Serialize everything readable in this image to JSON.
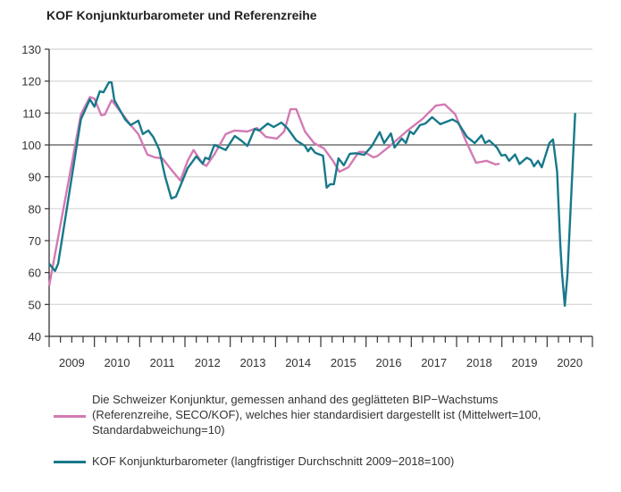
{
  "chart_data": {
    "type": "line",
    "title": "KOF Konjunkturbarometer und Referenzreihe",
    "xlabel": "",
    "ylabel": "",
    "xlim": [
      2009,
      2021
    ],
    "ylim": [
      40,
      130
    ],
    "yticks": [
      40,
      50,
      60,
      70,
      80,
      90,
      100,
      110,
      120,
      130
    ],
    "xtick_labels": [
      "2009",
      "2010",
      "2011",
      "2012",
      "2013",
      "2014",
      "2015",
      "2016",
      "2017",
      "2018",
      "2019",
      "2020"
    ],
    "reference_line": 100,
    "grid": "horizontal",
    "legend_position": "bottom",
    "series": [
      {
        "name": "Die Schweizer Konjunktur, gemessen anhand des geglätteten BIP−Wachstums (Referenzreihe, SECO/KOF), welches hier standardisiert dargestellt ist (Mittelwert=100, Standardabweichung=10)",
        "legend_lines": [
          "Die Schweizer Konjunktur, gemessen anhand des geglätteten BIP−Wachstums",
          "(Referenzreihe, SECO/KOF), welches hier standardisiert dargestellt ist (Mittelwert=100,",
          "Standardabweichung=10)"
        ],
        "color": "#d27ab3",
        "x": [
          2009.0,
          2009.7,
          2009.9,
          2010.0,
          2010.15,
          2010.23,
          2010.38,
          2010.61,
          2010.8,
          2010.97,
          2011.17,
          2011.33,
          2011.5,
          2011.7,
          2011.9,
          2012.06,
          2012.19,
          2012.39,
          2012.47,
          2012.65,
          2012.9,
          2013.1,
          2013.38,
          2013.59,
          2013.79,
          2014.03,
          2014.19,
          2014.33,
          2014.46,
          2014.65,
          2014.85,
          2015.07,
          2015.27,
          2015.41,
          2015.61,
          2015.84,
          2015.96,
          2016.16,
          2016.25,
          2016.53,
          2016.89,
          2017.25,
          2017.54,
          2017.74,
          2017.97,
          2018.2,
          2018.43,
          2018.66,
          2018.86,
          2018.95
        ],
        "y": [
          55.8,
          109.5,
          115,
          114.5,
          109.3,
          109.5,
          114,
          109.8,
          106.2,
          103.4,
          97,
          96.1,
          95.8,
          92.2,
          88.8,
          95,
          98.4,
          94.1,
          93.4,
          97,
          103.4,
          104.5,
          104.2,
          105.3,
          102.5,
          102,
          104.2,
          111.2,
          111.2,
          104.2,
          100.6,
          98.9,
          95,
          91.6,
          93,
          97.8,
          97.8,
          96.1,
          96.5,
          99.7,
          104.2,
          108.2,
          112.3,
          112.7,
          109.6,
          101.4,
          94.4,
          95,
          93.9,
          94.1
        ]
      },
      {
        "name": "KOF Konjunkturbarometer (langfristiger Durchschnitt 2009−2018=100)",
        "color": "#17798a",
        "x": [
          2009.0,
          2009.13,
          2009.2,
          2009.7,
          2009.9,
          2010.0,
          2010.12,
          2010.2,
          2010.32,
          2010.38,
          2010.44,
          2010.68,
          2010.8,
          2010.97,
          2011.07,
          2011.19,
          2011.3,
          2011.43,
          2011.56,
          2011.7,
          2011.8,
          2012.06,
          2012.25,
          2012.39,
          2012.45,
          2012.53,
          2012.65,
          2012.78,
          2012.9,
          2013.1,
          2013.24,
          2013.38,
          2013.54,
          2013.64,
          2013.83,
          2013.96,
          2014.13,
          2014.26,
          2014.46,
          2014.65,
          2014.72,
          2014.78,
          2014.88,
          2015.05,
          2015.13,
          2015.21,
          2015.29,
          2015.39,
          2015.51,
          2015.64,
          2015.77,
          2015.96,
          2016.13,
          2016.3,
          2016.4,
          2016.55,
          2016.63,
          2016.79,
          2016.88,
          2016.97,
          2017.05,
          2017.19,
          2017.31,
          2017.46,
          2017.64,
          2017.91,
          2018.03,
          2018.23,
          2018.4,
          2018.55,
          2018.63,
          2018.72,
          2018.89,
          2018.99,
          2019.08,
          2019.16,
          2019.29,
          2019.39,
          2019.55,
          2019.64,
          2019.71,
          2019.8,
          2019.88,
          2020.05,
          2020.13,
          2020.22,
          2020.29,
          2020.33,
          2020.39,
          2020.45,
          2020.62
        ],
        "y": [
          62.8,
          60.5,
          62.8,
          108,
          114.3,
          112,
          116.8,
          116.5,
          119.6,
          119.6,
          114,
          108,
          106.2,
          107.6,
          103.4,
          104.5,
          102.5,
          98.6,
          90.2,
          83.2,
          83.8,
          92.7,
          96.4,
          94.1,
          96,
          95.5,
          100,
          99.2,
          98.4,
          102.8,
          101.4,
          99.7,
          105,
          104.5,
          106.7,
          105.6,
          107,
          105.3,
          101.4,
          99.7,
          98,
          99.2,
          97.5,
          96.6,
          86.6,
          87.7,
          87.7,
          95.8,
          93.6,
          97.2,
          97.4,
          96.9,
          99.7,
          104,
          100.6,
          103.6,
          99.2,
          102,
          100.6,
          104.2,
          103.4,
          106.2,
          106.7,
          108.7,
          106.5,
          108,
          107,
          102.5,
          100.6,
          103,
          100.6,
          101.4,
          99.2,
          96.7,
          96.9,
          95,
          97,
          94,
          96,
          95.3,
          93.3,
          95,
          93,
          100.6,
          101.7,
          91.6,
          69,
          59.4,
          49.6,
          59.4,
          110
        ]
      }
    ]
  }
}
